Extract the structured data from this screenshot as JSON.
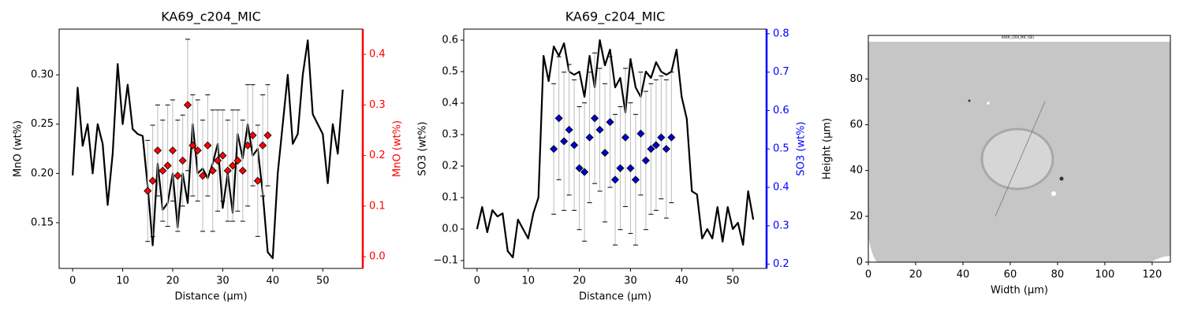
{
  "chart_data": [
    {
      "type": "line",
      "title": "KA69_c204_MIC",
      "xlabel": "Distance (µm)",
      "ylabel": "MnO (wt%)",
      "y2label": "MnO (wt%)",
      "y2color": "#ff0000",
      "xlim": [
        -2.7,
        58
      ],
      "xticks": [
        0,
        10,
        20,
        30,
        40,
        50
      ],
      "ylim": [
        0.1036,
        0.3464
      ],
      "yticks": [
        0.15,
        {
          "value": 0.2,
          "label": "0.20"
        },
        0.25,
        {
          "value": 0.3,
          "label": "0.30"
        }
      ],
      "y2lim": [
        -0.0233,
        0.45
      ],
      "y2ticks": [
        {
          "value": 0,
          "label": "0.0"
        },
        0.1,
        0.2,
        0.3,
        0.4
      ],
      "series": [
        {
          "color": "#000000",
          "x": [
            0,
            1,
            2,
            3,
            4,
            5,
            6,
            7,
            8,
            9,
            10,
            11,
            12,
            13,
            14,
            15,
            16,
            17,
            18,
            19,
            20,
            21,
            22,
            23,
            24,
            25,
            26,
            27,
            28,
            29,
            30,
            31,
            32,
            33,
            34,
            35,
            36,
            37,
            38,
            39,
            40,
            41,
            42,
            43,
            44,
            45,
            46,
            47,
            48,
            49,
            50,
            51,
            52,
            53,
            54
          ],
          "values": [
            0.198,
            0.287,
            0.228,
            0.25,
            0.2,
            0.25,
            0.23,
            0.168,
            0.22,
            0.311,
            0.25,
            0.29,
            0.245,
            0.24,
            0.238,
            0.187,
            0.127,
            0.21,
            0.163,
            0.17,
            0.2,
            0.145,
            0.2,
            0.17,
            0.25,
            0.2,
            0.205,
            0.195,
            0.21,
            0.23,
            0.165,
            0.2,
            0.16,
            0.24,
            0.215,
            0.25,
            0.218,
            0.225,
            0.18,
            0.12,
            0.114,
            0.2,
            0.25,
            0.3,
            0.23,
            0.24,
            0.3,
            0.335,
            0.26,
            0.25,
            0.24,
            0.19,
            0.25,
            0.22,
            0.285
          ]
        },
        {
          "color": "#ff0000",
          "axis": "y2",
          "marker": "diamond",
          "x": [
            15,
            16,
            17,
            18,
            19,
            20,
            21,
            22,
            23,
            24,
            25,
            26,
            27,
            28,
            29,
            30,
            31,
            32,
            33,
            34,
            35,
            36,
            37,
            38,
            39
          ],
          "values": [
            0.13,
            0.15,
            0.21,
            0.17,
            0.18,
            0.21,
            0.16,
            0.19,
            0.3,
            0.22,
            0.21,
            0.16,
            0.22,
            0.17,
            0.19,
            0.2,
            0.17,
            0.18,
            0.19,
            0.17,
            0.22,
            0.24,
            0.15,
            0.22,
            0.24
          ],
          "errors": [
            0.1,
            0.11,
            0.09,
            0.1,
            0.12,
            0.1,
            0.11,
            0.09,
            0.13,
            0.1,
            0.1,
            0.11,
            0.1,
            0.12,
            0.1,
            0.09,
            0.1,
            0.11,
            0.1,
            0.1,
            0.12,
            0.1,
            0.11,
            0.1,
            0.1
          ]
        }
      ]
    },
    {
      "type": "line",
      "title": "KA69_c204_MIC",
      "xlabel": "Distance (µm)",
      "ylabel": "SO3 (wt%)",
      "y2label": "SO3 (wt%)",
      "y2color": "#0000ff",
      "xlim": [
        -2.6,
        56.6
      ],
      "xticks": [
        0,
        10,
        20,
        30,
        40,
        50
      ],
      "ylim": [
        -0.125,
        0.635
      ],
      "yticks": [
        {
          "value": -0.1,
          "label": "−0.1"
        },
        {
          "value": 0,
          "label": "0.0"
        },
        0.1,
        0.2,
        0.3,
        0.4,
        0.5,
        0.6
      ],
      "y2lim": [
        0.189,
        0.812
      ],
      "y2ticks": [
        0.2,
        0.3,
        0.4,
        0.5,
        0.6,
        0.7,
        0.8
      ],
      "series": [
        {
          "color": "#000000",
          "x": [
            0,
            1,
            2,
            3,
            4,
            5,
            6,
            7,
            8,
            9,
            10,
            11,
            12,
            13,
            14,
            15,
            16,
            17,
            18,
            19,
            20,
            21,
            22,
            23,
            24,
            25,
            26,
            27,
            28,
            29,
            30,
            31,
            32,
            33,
            34,
            35,
            36,
            37,
            38,
            39,
            40,
            41,
            42,
            43,
            44,
            45,
            46,
            47,
            48,
            49,
            50,
            51,
            52,
            53,
            54
          ],
          "values": [
            0,
            0.07,
            -0.01,
            0.06,
            0.04,
            0.05,
            -0.07,
            -0.09,
            0.03,
            0,
            -0.03,
            0.05,
            0.1,
            0.55,
            0.47,
            0.58,
            0.55,
            0.59,
            0.5,
            0.49,
            0.5,
            0.42,
            0.55,
            0.45,
            0.6,
            0.52,
            0.57,
            0.45,
            0.48,
            0.37,
            0.54,
            0.45,
            0.42,
            0.5,
            0.48,
            0.53,
            0.5,
            0.49,
            0.5,
            0.57,
            0.42,
            0.35,
            0.12,
            0.11,
            -0.03,
            0,
            -0.03,
            0.07,
            -0.04,
            0.07,
            0,
            0.02,
            -0.05,
            0.12,
            0.03
          ]
        },
        {
          "color": "#0000cc",
          "axis": "y2",
          "marker": "diamond",
          "x": [
            15,
            16,
            17,
            18,
            19,
            20,
            21,
            22,
            23,
            24,
            25,
            26,
            27,
            28,
            29,
            30,
            31,
            32,
            33,
            34,
            35,
            36,
            37,
            38
          ],
          "values": [
            0.5,
            0.58,
            0.52,
            0.55,
            0.51,
            0.45,
            0.44,
            0.53,
            0.58,
            0.55,
            0.49,
            0.57,
            0.42,
            0.45,
            0.53,
            0.45,
            0.42,
            0.54,
            0.47,
            0.5,
            0.51,
            0.53,
            0.5,
            0.53
          ],
          "errors": [
            0.17,
            0.16,
            0.18,
            0.17,
            0.17,
            0.16,
            0.18,
            0.17,
            0.17,
            0.16,
            0.18,
            0.17,
            0.17,
            0.16,
            0.18,
            0.17,
            0.17,
            0.16,
            0.18,
            0.17,
            0.17,
            0.16,
            0.18,
            0.17
          ]
        }
      ]
    },
    {
      "type": "image",
      "title": "KA69_c204_MIC (SE)",
      "xlabel": "Width (µm)",
      "ylabel": "Height (µm)",
      "xlim": [
        0,
        127.7
      ],
      "xticks": [
        0,
        20,
        40,
        60,
        80,
        100,
        120
      ],
      "ylim": [
        0,
        99
      ],
      "yticks": [
        0,
        20,
        40,
        60,
        80
      ]
    }
  ]
}
